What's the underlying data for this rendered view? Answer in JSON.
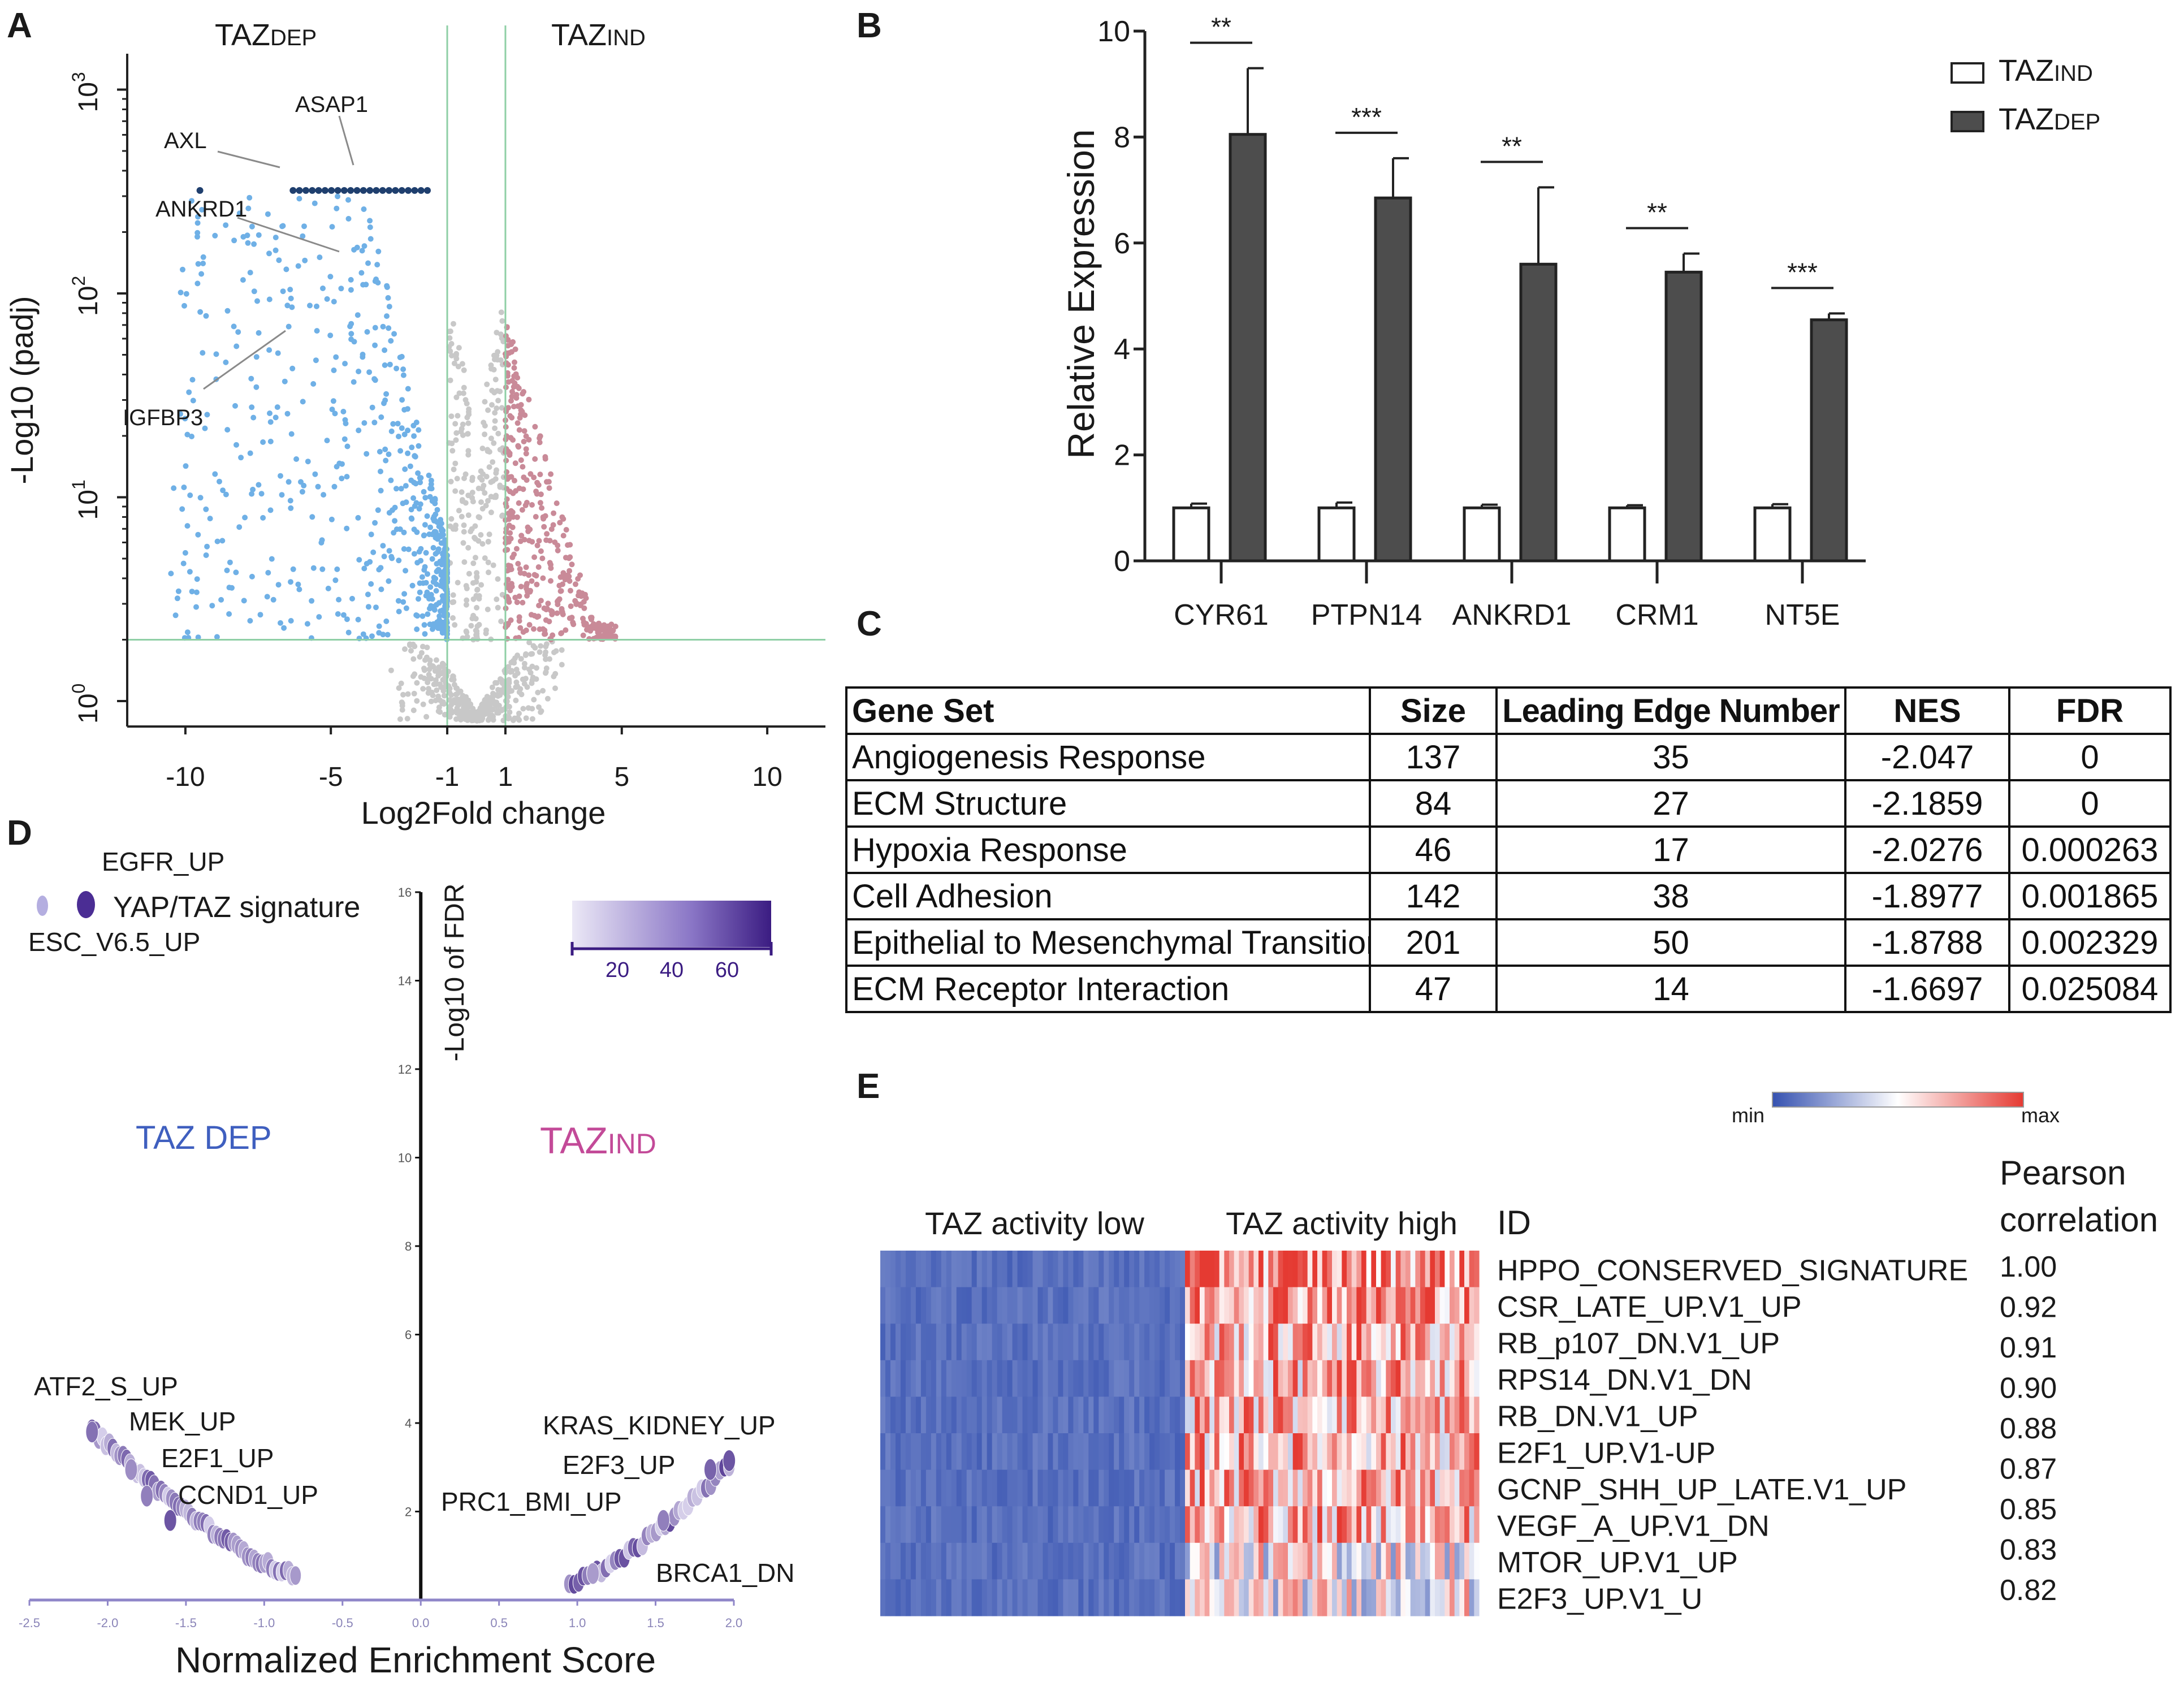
{
  "colors": {
    "taz_dep_blue": "#6fb0e6",
    "taz_ind_red": "#c98a98",
    "nonsig_gray": "#c8c8c8",
    "saturated_navy": "#1f3f6e",
    "threshold_green": "#8fcfa6",
    "bar_dark": "#4d4d4d",
    "enrich_purple": "#5b3fa0",
    "axis_purple": "#8f86c8",
    "label_blue": "#3f5fbf",
    "label_pink": "#c34a98",
    "heat_blue": "#3551b0",
    "heat_red": "#e53a32"
  },
  "panels": {
    "a": {
      "label": "A",
      "group_dep": "TAZ",
      "group_dep_sub": "DEP",
      "group_ind": "TAZ",
      "group_ind_sub": "IND",
      "xlabel": "Log2Fold change",
      "ylabel": "-Log10 (padj)",
      "y_exponent_base": "10",
      "genes": [
        "AXL",
        "ASAP1",
        "ANKRD1",
        "IGFBP3"
      ]
    },
    "b": {
      "label": "B"
    },
    "c": {
      "label": "C",
      "headers": [
        "Gene Set",
        "Size",
        "Leading Edge Number",
        "NES",
        "FDR"
      ],
      "rows": [
        {
          "gene_set": "Angiogenesis Response",
          "size": "137",
          "leading_edge": "35",
          "nes": "-2.047",
          "fdr": "0"
        },
        {
          "gene_set": "ECM Structure",
          "size": "84",
          "leading_edge": "27",
          "nes": "-2.1859",
          "fdr": "0"
        },
        {
          "gene_set": "Hypoxia Response",
          "size": "46",
          "leading_edge": "17",
          "nes": "-2.0276",
          "fdr": "0.000263"
        },
        {
          "gene_set": "Cell Adhesion",
          "size": "142",
          "leading_edge": "38",
          "nes": "-1.8977",
          "fdr": "0.001865"
        },
        {
          "gene_set": "Epithelial to Mesenchymal Transition",
          "size": "201",
          "leading_edge": "50",
          "nes": "-1.8788",
          "fdr": "0.002329"
        },
        {
          "gene_set": "ECM Receptor Interaction",
          "size": "47",
          "leading_edge": "14",
          "nes": "-1.6697",
          "fdr": "0.025084"
        }
      ]
    },
    "d": {
      "label": "D",
      "legend_title": "YAP/TAZ signature",
      "legend_top": "EGFR_UP",
      "legend_bottom": "ESC_V6.5_UP",
      "colorbar_ticks": [
        "20",
        "40",
        "60"
      ],
      "dep_label": "TAZ ",
      "dep_sub": "DEP",
      "ind_label": "TAZ",
      "ind_sub": "IND",
      "xlabel": "Normalized Enrichment Score",
      "ylabel": "-Log10 of FDR",
      "gene_sets": [
        "ATF2_S_UP",
        "MEK_UP",
        "E2F1_UP",
        "CCND1_UP",
        "KRAS_KIDNEY_UP",
        "E2F3_UP",
        "PRC1_BMI_UP",
        "BRCA1_DN"
      ]
    },
    "e": {
      "label": "E",
      "scale_min": "min",
      "scale_max": "max",
      "group_low": "TAZ activity low",
      "group_high": "TAZ activity high",
      "id_header": "ID",
      "corr_header_1": "Pearson",
      "corr_header_2": "correlation",
      "rows": [
        {
          "id": "HPPO_CONSERVED_SIGNATURE",
          "corr": "1.00"
        },
        {
          "id": "CSR_LATE_UP.V1_UP",
          "corr": "0.92"
        },
        {
          "id": "RB_p107_DN.V1_UP",
          "corr": "0.91"
        },
        {
          "id": "RPS14_DN.V1_DN",
          "corr": "0.90"
        },
        {
          "id": "RB_DN.V1_UP",
          "corr": "0.88"
        },
        {
          "id": "E2F1_UP.V1-UP",
          "corr": "0.87"
        },
        {
          "id": "GCNP_SHH_UP_LATE.V1_UP",
          "corr": "0.85"
        },
        {
          "id": "VEGF_A_UP.V1_DN",
          "corr": "0.83"
        },
        {
          "id": "MTOR_UP.V1_UP",
          "corr": "0.82"
        },
        {
          "id": "E2F3_UP.V1_U",
          "corr": ""
        }
      ]
    }
  },
  "chart_data": [
    {
      "panel": "A",
      "type": "scatter",
      "title": "",
      "xlabel": "Log2Fold change",
      "ylabel": "-Log10 (padj)",
      "xlim": [
        -12,
        12
      ],
      "y_scale": "log",
      "ylim": [
        0.75,
        1500
      ],
      "x_ticks": [
        -10,
        -5,
        -1,
        1,
        5,
        10
      ],
      "y_ticks": [
        1,
        10,
        100,
        1000
      ],
      "y_tick_exponents": [
        "0",
        "1",
        "2",
        "3"
      ],
      "fold_change_thresholds": [
        -1,
        1
      ],
      "padj_threshold": 2.0,
      "saturation_value": 320,
      "series": [
        {
          "name": "TAZ DEP (down)",
          "color": "#6fb0e6"
        },
        {
          "name": "TAZ IND (up)",
          "color": "#c98a98"
        },
        {
          "name": "not significant",
          "color": "#c8c8c8"
        }
      ],
      "annotated_genes": [
        {
          "gene": "AXL",
          "x": -3.2,
          "y": 320
        },
        {
          "gene": "ASAP1",
          "x": -2.6,
          "y": 320
        },
        {
          "gene": "ANKRD1",
          "x": -3.0,
          "y": 140
        },
        {
          "gene": "IGFBP3",
          "x": -6.0,
          "y": 45
        }
      ]
    },
    {
      "panel": "B",
      "type": "bar",
      "title": "",
      "xlabel": "",
      "ylabel": "Relative Expression",
      "ylim": [
        0,
        10
      ],
      "y_ticks": [
        0,
        2,
        4,
        6,
        8,
        10
      ],
      "categories": [
        "CYR61",
        "PTPN14",
        "ANKRD1",
        "CRM1",
        "NT5E"
      ],
      "series": [
        {
          "name": "TAZ",
          "sub": "IND",
          "values": [
            1.0,
            1.0,
            1.0,
            1.0,
            1.0
          ],
          "errors": [
            0.08,
            0.1,
            0.06,
            0.05,
            0.07
          ]
        },
        {
          "name": "TAZ",
          "sub": "DEP",
          "values": [
            8.05,
            6.85,
            5.6,
            5.45,
            4.55
          ],
          "errors": [
            1.25,
            0.75,
            1.45,
            0.35,
            0.12
          ]
        }
      ],
      "significance": [
        "**",
        "***",
        "**",
        "**",
        "***"
      ]
    },
    {
      "panel": "D",
      "type": "scatter",
      "title": "",
      "xlabel": "Normalized Enrichment Score",
      "ylabel": "-Log10 of FDR",
      "xlim": [
        -2.5,
        2.0
      ],
      "ylim": [
        0,
        16
      ],
      "x_ticks": [
        -2.5,
        -2.0,
        -1.5,
        -1.0,
        -0.5,
        0.0,
        0.5,
        1.0,
        1.5,
        2.0
      ],
      "x_tick_labels": [
        "-2.5",
        "-2.0",
        "-1.5",
        "-1.0",
        "-0.5",
        "0.0",
        "0.5",
        "1.0",
        "1.5",
        "2.0"
      ],
      "y_ticks": [
        2,
        4,
        6,
        8,
        10,
        12,
        14,
        16
      ],
      "y_tick_labels": [
        "2",
        "4",
        "6",
        "8",
        "10",
        "12",
        "14",
        "16"
      ],
      "color_scale": {
        "min": 5,
        "max": 75,
        "from": "#e6e2f5",
        "to": "#3b1c82"
      },
      "legend": [
        {
          "name": "ESC_V6.5_UP",
          "size": 12
        },
        {
          "name": "EGFR_UP",
          "size": 60
        }
      ],
      "labeled_points": [
        {
          "name": "ATF2_S_UP",
          "x": -2.1,
          "y": 3.8,
          "size": 45
        },
        {
          "name": "MEK_UP",
          "x": -1.85,
          "y": 2.95,
          "size": 35
        },
        {
          "name": "E2F1_UP",
          "x": -1.75,
          "y": 2.35,
          "size": 40
        },
        {
          "name": "CCND1_UP",
          "x": -1.6,
          "y": 1.8,
          "size": 55
        },
        {
          "name": "KRAS_KIDNEY_UP",
          "x": 1.97,
          "y": 3.15,
          "size": 55
        },
        {
          "name": "E2F3_UP",
          "x": 1.85,
          "y": 2.95,
          "size": 50
        },
        {
          "name": "PRC1_BMI_UP",
          "x": 1.55,
          "y": 1.8,
          "size": 40
        },
        {
          "name": "BRCA1_DN",
          "x": 1.1,
          "y": 0.6,
          "size": 30
        }
      ],
      "trend_left": {
        "x_from": -2.1,
        "x_to": -0.8,
        "points": 60
      },
      "trend_right": {
        "x_from": 0.95,
        "x_to": 1.97,
        "points": 36
      }
    },
    {
      "panel": "E",
      "type": "heatmap",
      "title": "",
      "groups": [
        "TAZ activity low",
        "TAZ activity high"
      ],
      "rows": [
        "HPPO_CONSERVED_SIGNATURE",
        "CSR_LATE_UP.V1_UP",
        "RB_p107_DN.V1_UP",
        "RPS14_DN.V1_DN",
        "RB_DN.V1_UP",
        "E2F1_UP.V1-UP",
        "GCNP_SHH_UP_LATE.V1_UP",
        "VEGF_A_UP.V1_DN",
        "MTOR_UP.V1_UP",
        "E2F3_UP.V1_U"
      ],
      "pearson_correlation": [
        1.0,
        0.92,
        0.91,
        0.9,
        0.88,
        0.87,
        0.85,
        0.83,
        0.82
      ],
      "color_scale": {
        "min_label": "min",
        "max_label": "max",
        "low": "#3551b0",
        "mid": "#ffffff",
        "high": "#e53a32"
      },
      "columns_low": 60,
      "columns_high": 60
    }
  ]
}
